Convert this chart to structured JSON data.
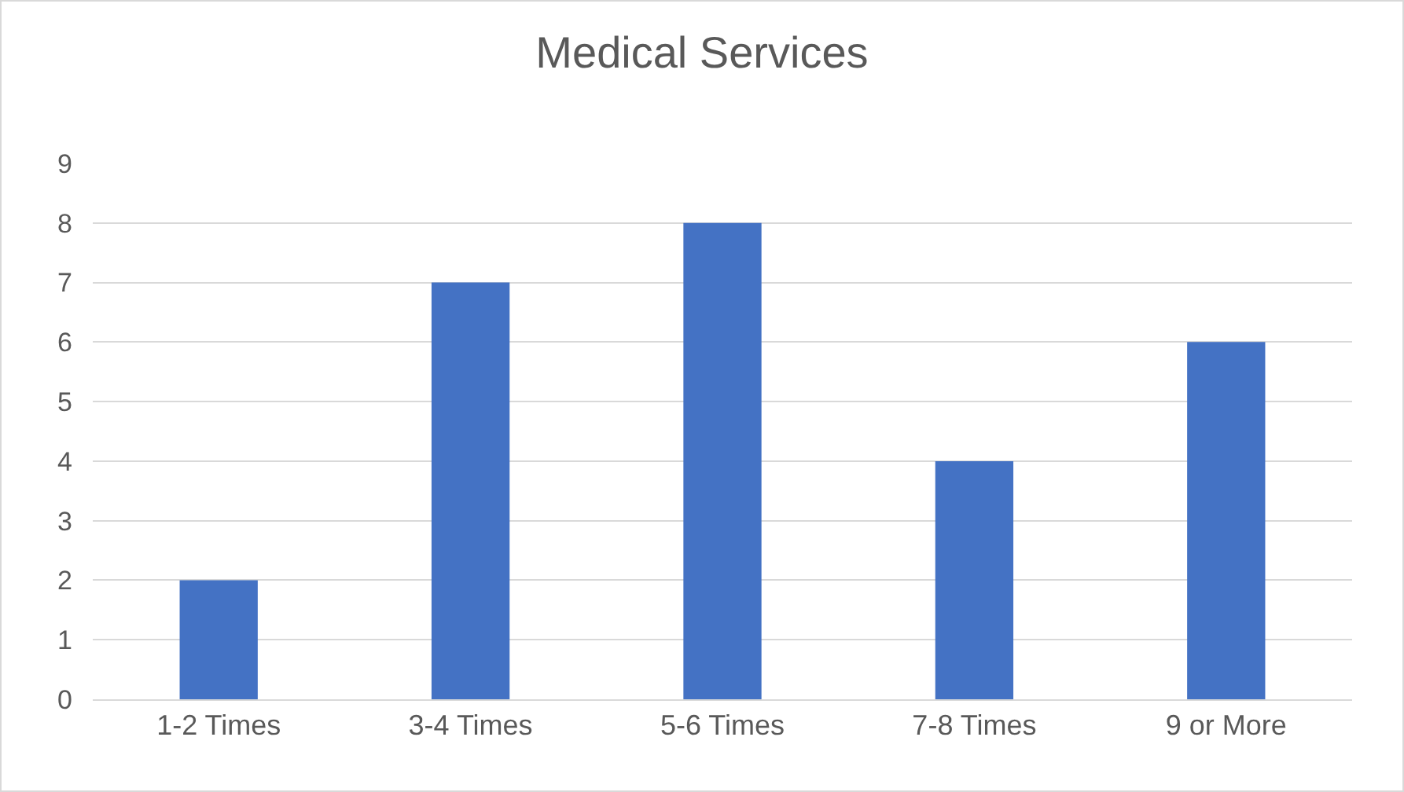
{
  "chart_data": {
    "type": "bar",
    "title": "Medical Services",
    "categories": [
      "1-2 Times",
      "3-4 Times",
      "5-6 Times",
      "7-8 Times",
      "9 or More"
    ],
    "values": [
      2,
      7,
      8,
      4,
      6
    ],
    "color": "#4472c4",
    "ylim": [
      0,
      9
    ],
    "yticks": [
      0,
      1,
      2,
      3,
      4,
      5,
      6,
      7,
      8,
      9
    ],
    "grid": "y",
    "legend": false
  }
}
